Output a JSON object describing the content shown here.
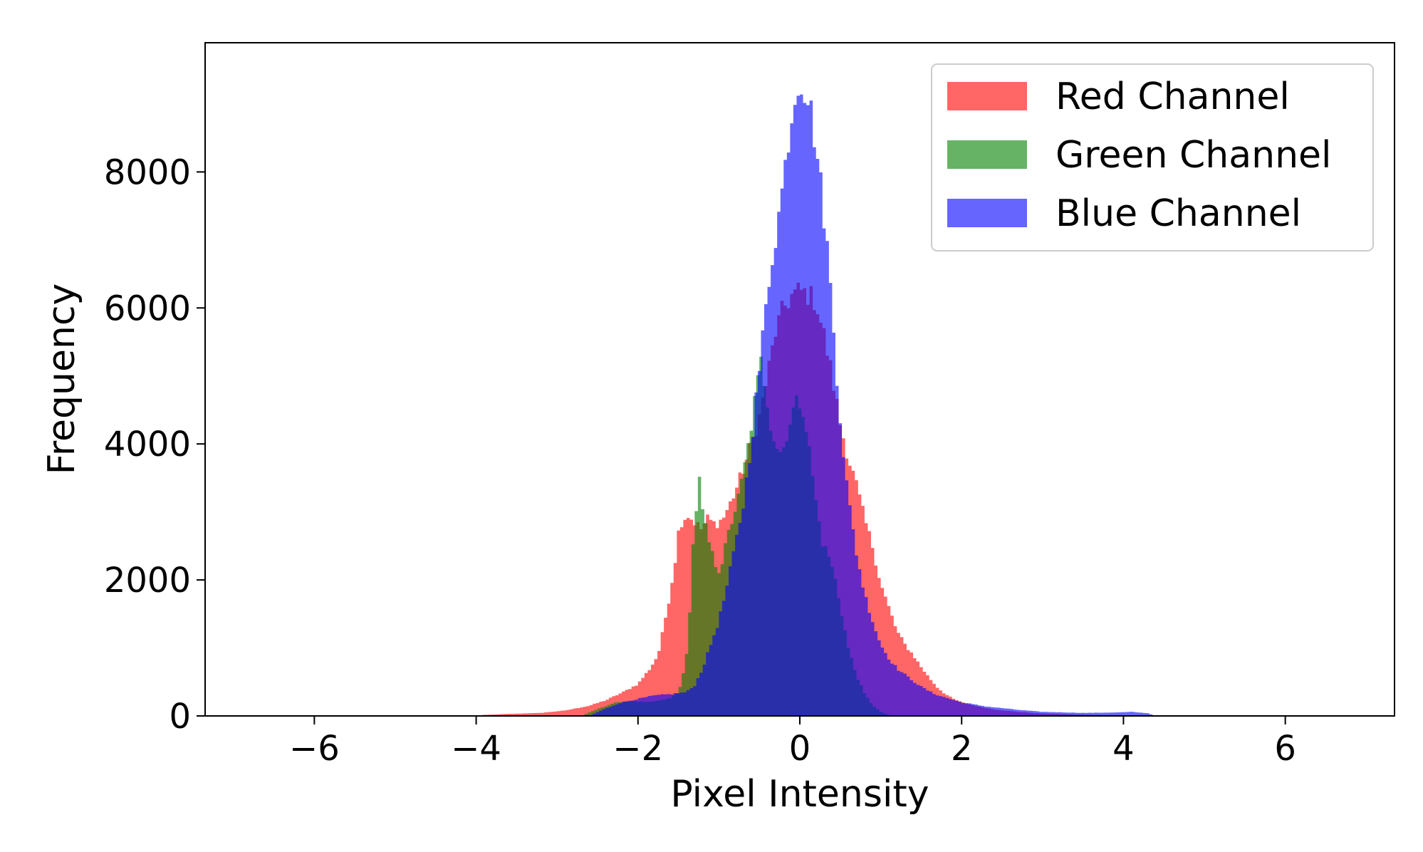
{
  "chart_data": {
    "type": "histogram",
    "title": "",
    "xlabel": "Pixel Intensity",
    "ylabel": "Frequency",
    "xlim": [
      -7.35,
      7.35
    ],
    "ylim": [
      0,
      9900
    ],
    "xticks": [
      -6,
      -4,
      -2,
      0,
      2,
      4,
      6
    ],
    "yticks": [
      0,
      2000,
      4000,
      6000,
      8000
    ],
    "bin_width": 0.04,
    "grid": false,
    "legend": {
      "location": "upper right"
    },
    "series": [
      {
        "name": "Red Channel",
        "color": "#ff0000",
        "alpha": 0.6,
        "points": [
          [
            -4.0,
            0
          ],
          [
            -3.9,
            15
          ],
          [
            -3.6,
            30
          ],
          [
            -3.2,
            45
          ],
          [
            -2.9,
            80
          ],
          [
            -2.6,
            150
          ],
          [
            -2.4,
            230
          ],
          [
            -2.2,
            340
          ],
          [
            -2.0,
            470
          ],
          [
            -1.85,
            700
          ],
          [
            -1.75,
            900
          ],
          [
            -1.7,
            1200
          ],
          [
            -1.62,
            1700
          ],
          [
            -1.55,
            2200
          ],
          [
            -1.5,
            2700
          ],
          [
            -1.45,
            2900
          ],
          [
            -1.38,
            2950
          ],
          [
            -1.3,
            2850
          ],
          [
            -1.22,
            2750
          ],
          [
            -1.14,
            2900
          ],
          [
            -1.05,
            2820
          ],
          [
            -0.95,
            2900
          ],
          [
            -0.85,
            3150
          ],
          [
            -0.75,
            3450
          ],
          [
            -0.65,
            3800
          ],
          [
            -0.5,
            4400
          ],
          [
            -0.4,
            5000
          ],
          [
            -0.3,
            5650
          ],
          [
            -0.2,
            6000
          ],
          [
            -0.1,
            6180
          ],
          [
            0.0,
            6250
          ],
          [
            0.1,
            6200
          ],
          [
            0.2,
            6100
          ],
          [
            0.3,
            5600
          ],
          [
            0.4,
            5000
          ],
          [
            0.5,
            4300
          ],
          [
            0.6,
            3800
          ],
          [
            0.7,
            3400
          ],
          [
            0.8,
            2900
          ],
          [
            0.9,
            2500
          ],
          [
            1.0,
            1950
          ],
          [
            1.1,
            1600
          ],
          [
            1.2,
            1250
          ],
          [
            1.3,
            1050
          ],
          [
            1.4,
            900
          ],
          [
            1.5,
            720
          ],
          [
            1.6,
            560
          ],
          [
            1.7,
            420
          ],
          [
            1.8,
            320
          ],
          [
            1.9,
            250
          ],
          [
            2.0,
            200
          ],
          [
            2.2,
            140
          ],
          [
            2.4,
            95
          ],
          [
            2.7,
            60
          ],
          [
            3.0,
            35
          ],
          [
            3.4,
            20
          ],
          [
            3.8,
            8
          ],
          [
            4.2,
            0
          ]
        ]
      },
      {
        "name": "Green Channel",
        "color": "#008000",
        "alpha": 0.6,
        "points": [
          [
            -2.7,
            0
          ],
          [
            -2.5,
            100
          ],
          [
            -2.3,
            190
          ],
          [
            -2.1,
            220
          ],
          [
            -1.9,
            200
          ],
          [
            -1.75,
            220
          ],
          [
            -1.6,
            260
          ],
          [
            -1.5,
            350
          ],
          [
            -1.42,
            700
          ],
          [
            -1.38,
            1100
          ],
          [
            -1.35,
            1800
          ],
          [
            -1.32,
            2500
          ],
          [
            -1.28,
            3050
          ],
          [
            -1.24,
            3450
          ],
          [
            -1.2,
            3000
          ],
          [
            -1.15,
            2700
          ],
          [
            -1.1,
            2450
          ],
          [
            -1.05,
            2250
          ],
          [
            -1.0,
            2150
          ],
          [
            -0.95,
            2300
          ],
          [
            -0.9,
            2600
          ],
          [
            -0.82,
            2950
          ],
          [
            -0.76,
            3200
          ],
          [
            -0.7,
            3550
          ],
          [
            -0.62,
            4100
          ],
          [
            -0.55,
            4700
          ],
          [
            -0.48,
            5200
          ],
          [
            -0.42,
            4800
          ],
          [
            -0.36,
            4300
          ],
          [
            -0.3,
            4000
          ],
          [
            -0.22,
            3850
          ],
          [
            -0.15,
            4200
          ],
          [
            -0.08,
            4500
          ],
          [
            -0.02,
            4650
          ],
          [
            0.05,
            4500
          ],
          [
            0.12,
            3900
          ],
          [
            0.2,
            3150
          ],
          [
            0.28,
            2550
          ],
          [
            0.36,
            2350
          ],
          [
            0.44,
            2000
          ],
          [
            0.52,
            1500
          ],
          [
            0.6,
            1000
          ],
          [
            0.7,
            600
          ],
          [
            0.8,
            330
          ],
          [
            0.9,
            160
          ],
          [
            1.0,
            60
          ],
          [
            1.1,
            15
          ],
          [
            1.2,
            0
          ]
        ]
      },
      {
        "name": "Blue Channel",
        "color": "#0000ff",
        "alpha": 0.6,
        "points": [
          [
            -2.6,
            0
          ],
          [
            -2.4,
            110
          ],
          [
            -2.2,
            200
          ],
          [
            -2.0,
            250
          ],
          [
            -1.8,
            300
          ],
          [
            -1.6,
            320
          ],
          [
            -1.4,
            350
          ],
          [
            -1.3,
            450
          ],
          [
            -1.2,
            700
          ],
          [
            -1.1,
            1050
          ],
          [
            -1.0,
            1400
          ],
          [
            -0.9,
            1900
          ],
          [
            -0.8,
            2500
          ],
          [
            -0.7,
            3100
          ],
          [
            -0.6,
            4000
          ],
          [
            -0.5,
            5100
          ],
          [
            -0.42,
            6000
          ],
          [
            -0.35,
            6700
          ],
          [
            -0.28,
            7200
          ],
          [
            -0.2,
            7900
          ],
          [
            -0.14,
            8500
          ],
          [
            -0.08,
            9000
          ],
          [
            -0.02,
            9350
          ],
          [
            0.04,
            9300
          ],
          [
            0.1,
            9100
          ],
          [
            0.16,
            8750
          ],
          [
            0.22,
            8200
          ],
          [
            0.28,
            7600
          ],
          [
            0.34,
            6900
          ],
          [
            0.4,
            6000
          ],
          [
            0.46,
            5000
          ],
          [
            0.52,
            4100
          ],
          [
            0.6,
            3200
          ],
          [
            0.7,
            2400
          ],
          [
            0.8,
            1800
          ],
          [
            0.9,
            1400
          ],
          [
            1.0,
            1050
          ],
          [
            1.1,
            850
          ],
          [
            1.2,
            700
          ],
          [
            1.35,
            560
          ],
          [
            1.5,
            430
          ],
          [
            1.65,
            330
          ],
          [
            1.8,
            270
          ],
          [
            2.0,
            200
          ],
          [
            2.3,
            140
          ],
          [
            2.7,
            90
          ],
          [
            3.0,
            60
          ],
          [
            3.5,
            45
          ],
          [
            3.9,
            50
          ],
          [
            4.1,
            60
          ],
          [
            4.3,
            40
          ],
          [
            4.4,
            0
          ]
        ]
      }
    ]
  }
}
